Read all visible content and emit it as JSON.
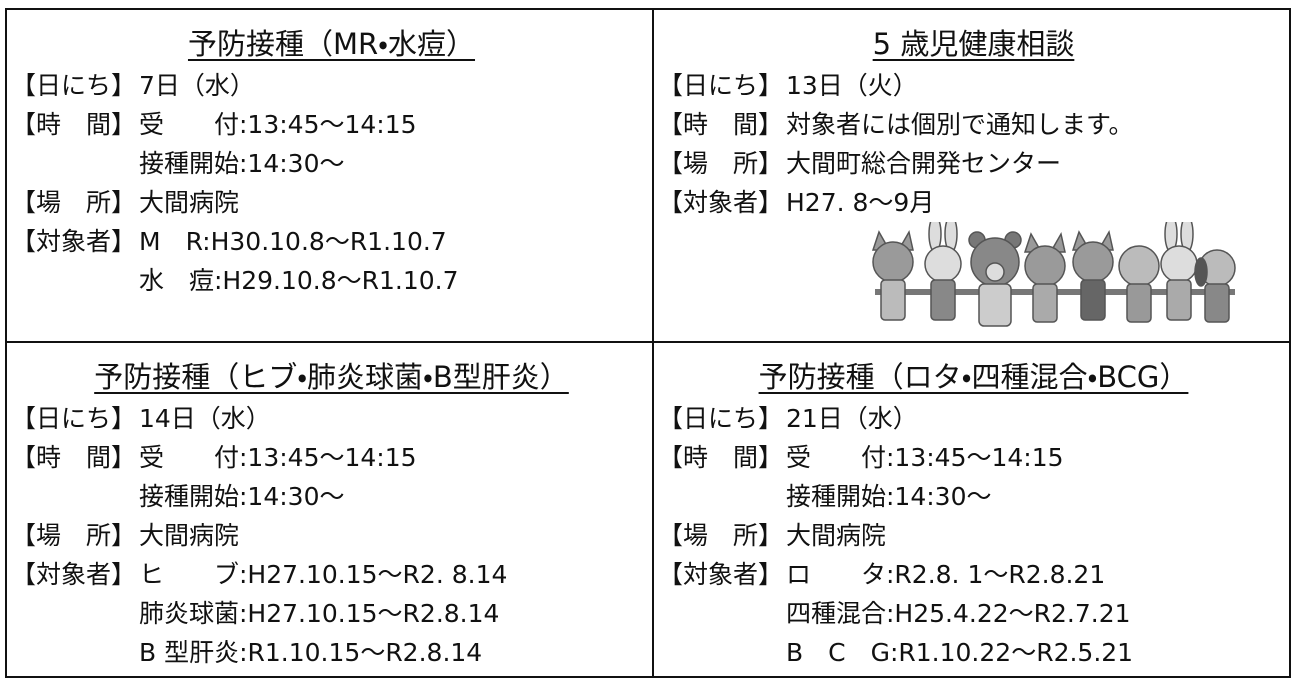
{
  "cells": [
    {
      "title": "予防接種（MR・水痘）",
      "items": [
        {
          "label": "【日にち】",
          "lines": [
            "7日（水）"
          ]
        },
        {
          "label": "【時　間】",
          "lines": [
            "受　　付:13:45～14:15",
            "接種開始:14:30～"
          ]
        },
        {
          "label": "【場　所】",
          "lines": [
            "大間病院"
          ]
        },
        {
          "label": "【対象者】",
          "lines": [
            "M　R:H30.10.8～R1.10.7",
            "水　痘:H29.10.8～R1.10.7"
          ]
        }
      ]
    },
    {
      "title": "5 歳児健康相談",
      "items": [
        {
          "label": "【日にち】",
          "lines": [
            "13日（火）"
          ]
        },
        {
          "label": "【時　間】",
          "lines": [
            "対象者には個別で通知します。"
          ]
        },
        {
          "label": "【場　所】",
          "lines": [
            "大間町総合開発センター"
          ]
        },
        {
          "label": "【対象者】",
          "lines": [
            "H27. 8～9月"
          ]
        }
      ]
    },
    {
      "title": "予防接種（ヒブ・肺炎球菌・B型肝炎）",
      "items": [
        {
          "label": "【日にち】",
          "lines": [
            "14日（水）"
          ]
        },
        {
          "label": "【時　間】",
          "lines": [
            "受　　付:13:45～14:15",
            "接種開始:14:30～"
          ]
        },
        {
          "label": "【場　所】",
          "lines": [
            "大間病院"
          ]
        },
        {
          "label": "【対象者】",
          "lines": [
            "ヒ　　ブ:H27.10.15～R2. 8.14",
            "肺炎球菌:H27.10.15～R2.8.14",
            "B 型肝炎:R1.10.15～R2.8.14"
          ]
        }
      ]
    },
    {
      "title": "予防接種（ロタ・四種混合・BCG）",
      "items": [
        {
          "label": "【日にち】",
          "lines": [
            "21日（水）"
          ]
        },
        {
          "label": "【時　間】",
          "lines": [
            "受　　付:13:45～14:15",
            "接種開始:14:30～"
          ]
        },
        {
          "label": "【場　所】",
          "lines": [
            "大間病院"
          ]
        },
        {
          "label": "【対象者】",
          "lines": [
            "ロ　　タ:R2.8. 1～R2.8.21",
            "四種混合:H25.4.22～R2.7.21",
            "B　C　G:R1.10.22～R2.5.21"
          ]
        }
      ]
    }
  ]
}
